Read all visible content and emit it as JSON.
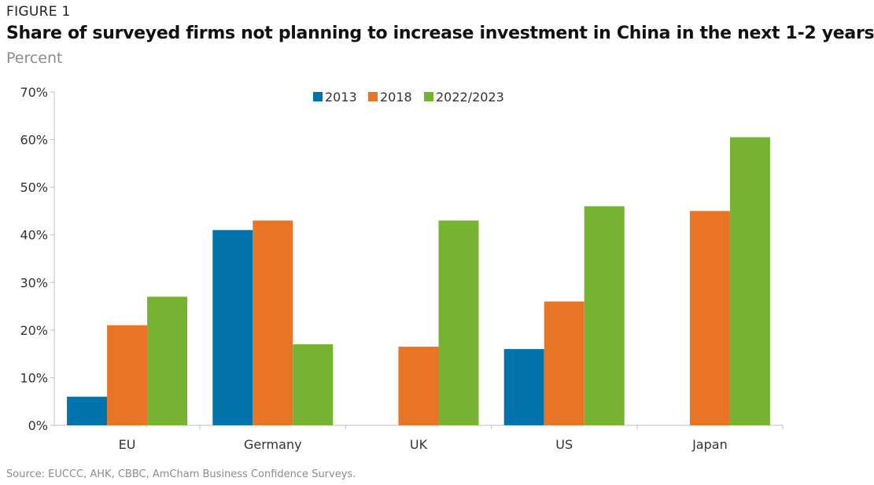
{
  "figure_label": "FIGURE 1",
  "source": "Source: EUCCC, AHK, CBBC, AmCham Business Confidence Surveys.",
  "colors": {
    "2013": "#0274ab",
    "2018": "#e87425",
    "2022/2023": "#77b332",
    "axis": "#bfbfbf"
  },
  "chart_data": {
    "type": "bar",
    "title": "Share of surveyed firms not planning to increase investment in China in the next 1-2 years",
    "subtitle": "Percent",
    "categories": [
      "EU",
      "Germany",
      "UK",
      "US",
      "Japan"
    ],
    "series": [
      {
        "name": "2013",
        "values": [
          6,
          41,
          null,
          16,
          null
        ]
      },
      {
        "name": "2018",
        "values": [
          21,
          43,
          16.5,
          26,
          45
        ]
      },
      {
        "name": "2022/2023",
        "values": [
          27,
          17,
          43,
          46,
          60.5
        ]
      }
    ],
    "ylim": [
      0,
      70
    ],
    "yticks": [
      0,
      10,
      20,
      30,
      40,
      50,
      60,
      70
    ],
    "ytick_labels": [
      "0%",
      "10%",
      "20%",
      "30%",
      "40%",
      "50%",
      "60%",
      "70%"
    ],
    "grid": false,
    "legend_position": "top-center"
  }
}
